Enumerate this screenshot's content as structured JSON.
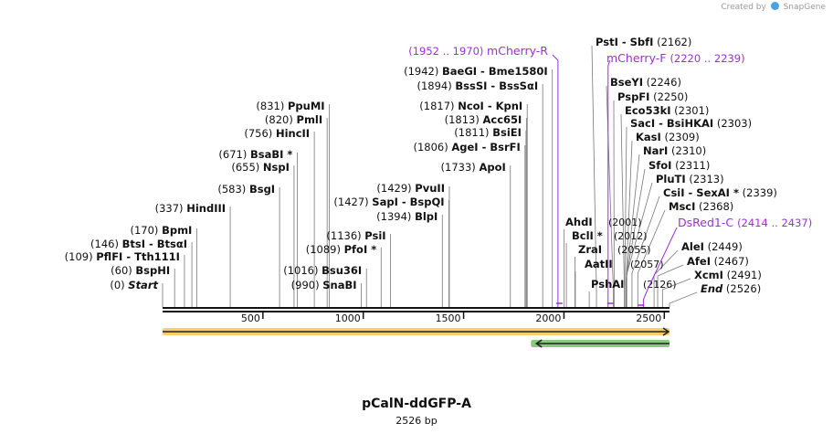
{
  "credit": {
    "prefix": "Created by",
    "brand": "SnapGene"
  },
  "plasmid": {
    "name": "pCalN-ddGFP-A",
    "size_label": "2526 bp",
    "length": 2526
  },
  "axis": {
    "ticks": [
      500,
      1000,
      1500,
      2000,
      2500
    ]
  },
  "colors": {
    "feature_label": "#9b30d9",
    "orange_feature": "#f6a000",
    "green_feature": "#2c9a1a",
    "line": "#777777"
  },
  "features": [
    {
      "name": "orange-feature",
      "start": 1,
      "end": 2526,
      "direction": "forward",
      "color": "#f6a000"
    },
    {
      "name": "green-feature",
      "start": 1800,
      "end": 2526,
      "direction": "reverse",
      "color": "#2c9a1a"
    }
  ],
  "left_sites": [
    {
      "pos": 0,
      "coord": "(0)",
      "name": "Start",
      "italic": true
    },
    {
      "pos": 60,
      "coord": "(60)",
      "name": "BspHI"
    },
    {
      "pos": 109,
      "coord": "(109)",
      "name": "PflFI - Tth111I"
    },
    {
      "pos": 146,
      "coord": "(146)",
      "name": "BtsI - BtsαI"
    },
    {
      "pos": 170,
      "coord": "(170)",
      "name": "BpmI"
    },
    {
      "pos": 337,
      "coord": "(337)",
      "name": "HindIII"
    },
    {
      "pos": 583,
      "coord": "(583)",
      "name": "BsgI"
    },
    {
      "pos": 655,
      "coord": "(655)",
      "name": "NspI"
    },
    {
      "pos": 671,
      "coord": "(671)",
      "name": "BsaBI *"
    },
    {
      "pos": 756,
      "coord": "(756)",
      "name": "HincII"
    },
    {
      "pos": 820,
      "coord": "(820)",
      "name": "PmlI"
    },
    {
      "pos": 831,
      "coord": "(831)",
      "name": "PpuMI"
    },
    {
      "pos": 990,
      "coord": "(990)",
      "name": "SnaBI"
    },
    {
      "pos": 1016,
      "coord": "(1016)",
      "name": "Bsu36I"
    },
    {
      "pos": 1089,
      "coord": "(1089)",
      "name": "PfoI *"
    },
    {
      "pos": 1136,
      "coord": "(1136)",
      "name": "PsiI"
    },
    {
      "pos": 1394,
      "coord": "(1394)",
      "name": "BlpI"
    },
    {
      "pos": 1427,
      "coord": "(1427)",
      "name": "SapI - BspQI"
    },
    {
      "pos": 1429,
      "coord": "(1429)",
      "name": "PvuII"
    },
    {
      "pos": 1733,
      "coord": "(1733)",
      "name": "ApoI"
    },
    {
      "pos": 1806,
      "coord": "(1806)",
      "name": "AgeI - BsrFI"
    },
    {
      "pos": 1811,
      "coord": "(1811)",
      "name": "BsiEI"
    },
    {
      "pos": 1813,
      "coord": "(1813)",
      "name": "Acc65I"
    },
    {
      "pos": 1817,
      "coord": "(1817)",
      "name": "NcoI - KpnI"
    },
    {
      "pos": 1894,
      "coord": "(1894)",
      "name": "BssSI - BssSαI"
    },
    {
      "pos": 1942,
      "coord": "(1942)",
      "name": "BaeGI - Bme1580I"
    }
  ],
  "right_sites": [
    {
      "pos": 2162,
      "name": "PstI - SbfI",
      "coord": "(2162)"
    },
    {
      "pos": 2246,
      "name": "BseYI",
      "coord": "(2246)"
    },
    {
      "pos": 2250,
      "name": "PspFI",
      "coord": "(2250)"
    },
    {
      "pos": 2301,
      "name": "Eco53kI",
      "coord": "(2301)"
    },
    {
      "pos": 2303,
      "name": "SacI - BsiHKAI",
      "coord": "(2303)"
    },
    {
      "pos": 2309,
      "name": "KasI",
      "coord": "(2309)"
    },
    {
      "pos": 2310,
      "name": "NarI",
      "coord": "(2310)"
    },
    {
      "pos": 2311,
      "name": "SfoI",
      "coord": "(2311)"
    },
    {
      "pos": 2313,
      "name": "PluTI",
      "coord": "(2313)"
    },
    {
      "pos": 2339,
      "name": "CsiI - SexAI *",
      "coord": "(2339)"
    },
    {
      "pos": 2368,
      "name": "MscI",
      "coord": "(2368)"
    },
    {
      "pos": 2449,
      "name": "AleI",
      "coord": "(2449)"
    },
    {
      "pos": 2467,
      "name": "AfeI",
      "coord": "(2467)"
    },
    {
      "pos": 2491,
      "name": "XcmI",
      "coord": "(2491)"
    },
    {
      "pos": 2526,
      "name": "End",
      "coord": "(2526)",
      "italic": true
    }
  ],
  "middle_sites": [
    {
      "pos": 2001,
      "name": "AhdI",
      "coord": "(2001)"
    },
    {
      "pos": 2012,
      "name": "BclI *",
      "coord": "(2012)"
    },
    {
      "pos": 2055,
      "name": "ZraI",
      "coord": "(2055)"
    },
    {
      "pos": 2057,
      "name": "AatII",
      "coord": "(2057)"
    },
    {
      "pos": 2126,
      "name": "PshAI",
      "coord": "(2126)"
    }
  ],
  "primers": [
    {
      "name": "mCherry-R",
      "range": "(1952 .. 1970)",
      "pos": 1952,
      "side": "left"
    },
    {
      "name": "mCherry-F",
      "range": "(2220 .. 2239)",
      "pos": 2220,
      "side": "right"
    },
    {
      "name": "DsRed1-C",
      "range": "(2414 .. 2437)",
      "pos": 2414,
      "side": "right"
    }
  ]
}
